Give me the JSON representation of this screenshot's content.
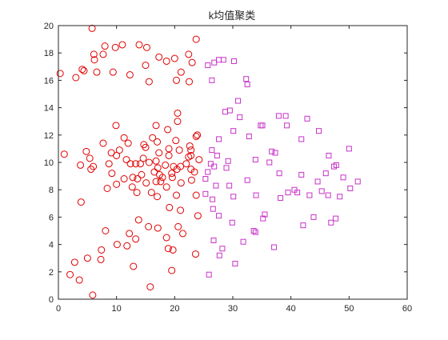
{
  "chart_data": {
    "type": "scatter",
    "title": "k均值聚类",
    "xlabel": "",
    "ylabel": "",
    "xlim": [
      0,
      60
    ],
    "ylim": [
      0,
      20
    ],
    "xticks": [
      0,
      10,
      20,
      30,
      40,
      50,
      60
    ],
    "yticks": [
      0,
      2,
      4,
      6,
      8,
      10,
      12,
      14,
      16,
      18,
      20
    ],
    "grid": false,
    "legend": "none",
    "series": [
      {
        "marker": "circle",
        "color": "#e00000",
        "points": [
          [
            5.8,
            19.8
          ],
          [
            8.0,
            18.5
          ],
          [
            9.8,
            18.4
          ],
          [
            11.0,
            18.6
          ],
          [
            13.9,
            18.6
          ],
          [
            15.2,
            18.4
          ],
          [
            17.3,
            17.7
          ],
          [
            20.0,
            17.6
          ],
          [
            23.7,
            19.0
          ],
          [
            6.1,
            17.9
          ],
          [
            6.2,
            17.5
          ],
          [
            7.7,
            17.9
          ],
          [
            15.0,
            17.1
          ],
          [
            18.6,
            17.4
          ],
          [
            22.4,
            17.9
          ],
          [
            23.0,
            17.3
          ],
          [
            0.3,
            16.5
          ],
          [
            3.0,
            16.2
          ],
          [
            4.1,
            16.8
          ],
          [
            4.4,
            16.7
          ],
          [
            12.3,
            16.4
          ],
          [
            9.4,
            16.6
          ],
          [
            21.1,
            16.6
          ],
          [
            6.6,
            16.6
          ],
          [
            15.6,
            15.9
          ],
          [
            20.3,
            16.0
          ],
          [
            22.5,
            15.9
          ],
          [
            20.5,
            13.6
          ],
          [
            20.5,
            13.0
          ],
          [
            16.8,
            12.7
          ],
          [
            9.9,
            12.7
          ],
          [
            18.8,
            12.4
          ],
          [
            23.7,
            11.9
          ],
          [
            23.9,
            12.0
          ],
          [
            11.3,
            11.8
          ],
          [
            16.2,
            11.8
          ],
          [
            20.2,
            11.6
          ],
          [
            7.7,
            11.4
          ],
          [
            12.0,
            11.4
          ],
          [
            17.0,
            11.5
          ],
          [
            14.7,
            11.3
          ],
          [
            15.0,
            11.1
          ],
          [
            19.0,
            11.0
          ],
          [
            22.6,
            11.2
          ],
          [
            22.8,
            10.9
          ],
          [
            1.0,
            10.6
          ],
          [
            4.8,
            10.8
          ],
          [
            9.1,
            10.7
          ],
          [
            10.0,
            10.5
          ],
          [
            10.5,
            10.9
          ],
          [
            14.6,
            10.3
          ],
          [
            17.3,
            10.7
          ],
          [
            19.0,
            10.5
          ],
          [
            20.8,
            10.9
          ],
          [
            22.4,
            10.4
          ],
          [
            22.8,
            10.5
          ],
          [
            24.2,
            10.2
          ],
          [
            16.8,
            10.1
          ],
          [
            5.4,
            10.3
          ],
          [
            3.8,
            9.8
          ],
          [
            6.0,
            9.7
          ],
          [
            8.7,
            9.9
          ],
          [
            11.7,
            10.2
          ],
          [
            12.4,
            9.9
          ],
          [
            13.3,
            9.9
          ],
          [
            14.1,
            9.9
          ],
          [
            15.6,
            10.0
          ],
          [
            17.1,
            9.6
          ],
          [
            18.4,
            9.8
          ],
          [
            19.8,
            9.7
          ],
          [
            21.0,
            9.7
          ],
          [
            22.0,
            9.9
          ],
          [
            22.8,
            9.5
          ],
          [
            5.6,
            9.5
          ],
          [
            9.2,
            9.2
          ],
          [
            14.3,
            9.1
          ],
          [
            16.5,
            9.3
          ],
          [
            17.4,
            9.1
          ],
          [
            19.5,
            9.2
          ],
          [
            20.4,
            9.5
          ],
          [
            23.4,
            9.3
          ],
          [
            12.8,
            8.9
          ],
          [
            11.3,
            8.8
          ],
          [
            13.6,
            8.8
          ],
          [
            15.1,
            8.5
          ],
          [
            16.8,
            8.6
          ],
          [
            17.6,
            8.6
          ],
          [
            17.9,
            8.9
          ],
          [
            19.6,
            8.9
          ],
          [
            21.1,
            8.5
          ],
          [
            22.9,
            8.7
          ],
          [
            10.0,
            8.4
          ],
          [
            12.7,
            8.2
          ],
          [
            8.4,
            8.1
          ],
          [
            18.6,
            8.2
          ],
          [
            13.5,
            7.8
          ],
          [
            16.0,
            7.8
          ],
          [
            20.3,
            7.6
          ],
          [
            23.7,
            7.6
          ],
          [
            3.9,
            7.1
          ],
          [
            17.0,
            7.5
          ],
          [
            19.1,
            6.7
          ],
          [
            21.0,
            6.5
          ],
          [
            24.0,
            6.1
          ],
          [
            13.8,
            5.8
          ],
          [
            15.5,
            5.3
          ],
          [
            17.1,
            5.2
          ],
          [
            20.6,
            5.3
          ],
          [
            21.4,
            4.8
          ],
          [
            8.1,
            5.0
          ],
          [
            12.2,
            4.8
          ],
          [
            13.3,
            4.4
          ],
          [
            18.6,
            4.5
          ],
          [
            10.1,
            4.0
          ],
          [
            11.8,
            3.9
          ],
          [
            18.9,
            3.7
          ],
          [
            19.7,
            3.6
          ],
          [
            7.4,
            3.6
          ],
          [
            23.6,
            3.3
          ],
          [
            5.0,
            3.0
          ],
          [
            7.3,
            2.9
          ],
          [
            2.8,
            2.7
          ],
          [
            12.9,
            2.4
          ],
          [
            19.5,
            2.1
          ],
          [
            2.0,
            1.8
          ],
          [
            3.6,
            1.4
          ],
          [
            15.8,
            0.9
          ],
          [
            5.9,
            0.3
          ]
        ]
      },
      {
        "marker": "square",
        "color": "#c832c8",
        "points": [
          [
            26.8,
            17.3
          ],
          [
            27.6,
            17.5
          ],
          [
            28.4,
            17.5
          ],
          [
            30.2,
            17.4
          ],
          [
            25.7,
            17.1
          ],
          [
            32.3,
            16.1
          ],
          [
            26.4,
            16.0
          ],
          [
            32.5,
            15.7
          ],
          [
            30.9,
            14.5
          ],
          [
            29.5,
            13.8
          ],
          [
            31.2,
            13.3
          ],
          [
            28.7,
            13.7
          ],
          [
            37.9,
            13.4
          ],
          [
            39.1,
            13.4
          ],
          [
            42.8,
            13.2
          ],
          [
            34.8,
            12.7
          ],
          [
            35.1,
            12.7
          ],
          [
            39.3,
            12.7
          ],
          [
            30.1,
            12.3
          ],
          [
            44.8,
            12.3
          ],
          [
            27.6,
            11.7
          ],
          [
            32.8,
            11.9
          ],
          [
            41.8,
            11.7
          ],
          [
            26.4,
            10.9
          ],
          [
            36.7,
            10.8
          ],
          [
            37.3,
            10.7
          ],
          [
            27.3,
            10.5
          ],
          [
            46.5,
            10.5
          ],
          [
            50.0,
            11.0
          ],
          [
            26.2,
            9.9
          ],
          [
            29.2,
            10.1
          ],
          [
            33.9,
            10.2
          ],
          [
            36.3,
            10.0
          ],
          [
            26.8,
            9.7
          ],
          [
            28.9,
            9.6
          ],
          [
            47.4,
            9.7
          ],
          [
            47.8,
            9.8
          ],
          [
            25.7,
            9.3
          ],
          [
            38.0,
            9.2
          ],
          [
            41.8,
            9.1
          ],
          [
            46.0,
            9.2
          ],
          [
            49.0,
            8.9
          ],
          [
            25.3,
            8.8
          ],
          [
            32.5,
            8.7
          ],
          [
            51.5,
            8.6
          ],
          [
            44.6,
            8.6
          ],
          [
            29.4,
            8.3
          ],
          [
            27.1,
            8.3
          ],
          [
            45.3,
            7.9
          ],
          [
            46.4,
            7.6
          ],
          [
            48.4,
            7.5
          ],
          [
            30.1,
            7.5
          ],
          [
            34.0,
            7.6
          ],
          [
            25.3,
            7.7
          ],
          [
            39.5,
            7.8
          ],
          [
            41.1,
            7.8
          ],
          [
            40.6,
            8.0
          ],
          [
            43.2,
            7.6
          ],
          [
            50.2,
            8.1
          ],
          [
            38.2,
            7.4
          ],
          [
            26.5,
            7.3
          ],
          [
            26.6,
            6.6
          ],
          [
            35.5,
            6.2
          ],
          [
            35.2,
            5.9
          ],
          [
            27.6,
            6.1
          ],
          [
            43.9,
            6.0
          ],
          [
            47.7,
            5.9
          ],
          [
            46.9,
            5.6
          ],
          [
            42.1,
            5.4
          ],
          [
            29.9,
            5.6
          ],
          [
            33.6,
            5.0
          ],
          [
            33.9,
            4.9
          ],
          [
            26.7,
            4.3
          ],
          [
            31.8,
            4.2
          ],
          [
            37.1,
            3.8
          ],
          [
            28.2,
            3.7
          ],
          [
            27.7,
            3.2
          ],
          [
            30.4,
            2.6
          ],
          [
            25.9,
            1.8
          ]
        ]
      }
    ]
  }
}
